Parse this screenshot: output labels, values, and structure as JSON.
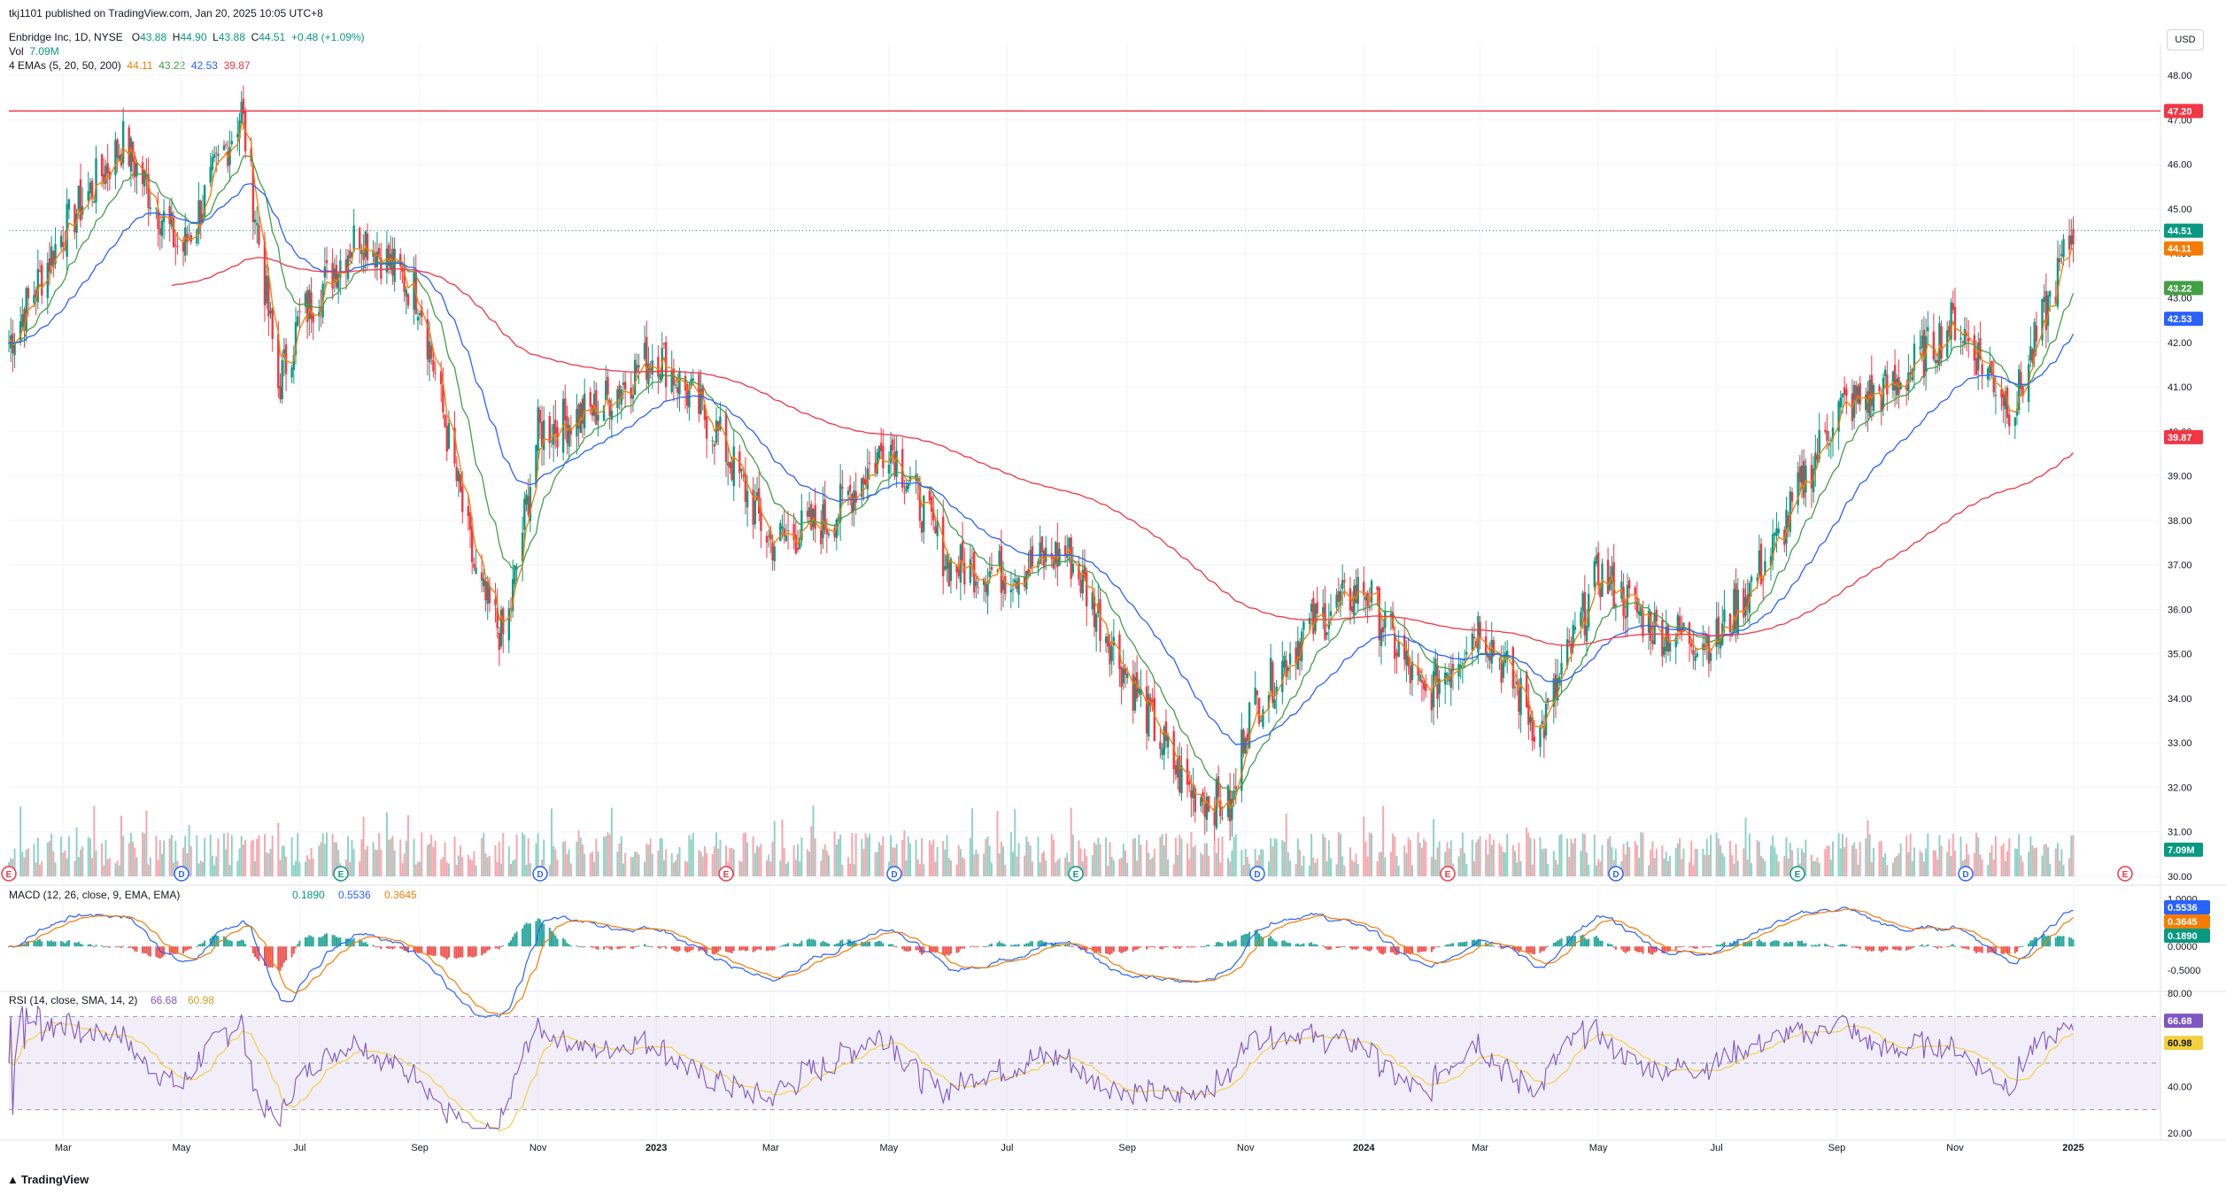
{
  "published": "tkj1101 published on TradingView.com, Jan 20, 2025 10:05 UTC+8",
  "header": {
    "symbol": "Enbridge Inc, 1D, NYSE",
    "open_label": "O",
    "open": "43.88",
    "high_label": "H",
    "high": "44.90",
    "low_label": "L",
    "low": "43.88",
    "close_label": "C",
    "close": "44.51",
    "change": "+0.48 (+1.09%)",
    "vol_label": "Vol",
    "vol": "7.09M",
    "ema_label": "4 EMAs (5, 20, 50, 200)",
    "ema5": "44.11",
    "ema20": "43.22",
    "ema50": "42.53",
    "ema200": "39.87",
    "currency": "USD"
  },
  "colors": {
    "up": "#089981",
    "down": "#f23645",
    "ema5": "#f57c00",
    "ema20": "#43a047",
    "ema50": "#2962ff",
    "ema200": "#f23645",
    "hline": "#f23645",
    "macd": "#2962ff",
    "signal": "#f57c00",
    "rsi": "#7e57c2",
    "rsi_ma": "#f4d03f"
  },
  "chart_data": [
    {
      "type": "candlestick",
      "title": "Enbridge Inc, 1D, NYSE",
      "ylim": [
        30.0,
        48.5
      ],
      "y_ticks": [
        "48.00",
        "47.00",
        "46.00",
        "45.00",
        "44.00",
        "43.00",
        "42.00",
        "41.00",
        "40.00",
        "39.00",
        "38.00",
        "37.00",
        "36.00",
        "35.00",
        "34.00",
        "33.00",
        "32.00",
        "31.00",
        "30.00"
      ],
      "x_labels": [
        "Mar",
        "May",
        "Jul",
        "Sep",
        "Nov",
        "2023",
        "Mar",
        "May",
        "Jul",
        "Sep",
        "Nov",
        "2024",
        "Mar",
        "May",
        "Jul",
        "Sep",
        "Nov",
        "2025"
      ],
      "horizontal_line": 47.2,
      "price_tags": [
        {
          "label": "47.20",
          "value": 47.2,
          "color": "#f23645"
        },
        {
          "label": "44.51",
          "value": 44.51,
          "color": "#089981"
        },
        {
          "label": "44.11",
          "value": 44.11,
          "color": "#f57c00"
        },
        {
          "label": "43.22",
          "value": 43.22,
          "color": "#43a047"
        },
        {
          "label": "42.53",
          "value": 42.53,
          "color": "#2962ff"
        },
        {
          "label": "39.87",
          "value": 39.87,
          "color": "#f23645"
        },
        {
          "label": "7.09M",
          "value": 30.6,
          "color": "#089981"
        }
      ],
      "approx_close_path": [
        {
          "x": "2022-02",
          "y": 42.0
        },
        {
          "x": "2022-03",
          "y": 44.5
        },
        {
          "x": "2022-04",
          "y": 46.5
        },
        {
          "x": "2022-05",
          "y": 44.0
        },
        {
          "x": "2022-06",
          "y": 47.2
        },
        {
          "x": "2022-06-20",
          "y": 41.0
        },
        {
          "x": "2022-07",
          "y": 42.5
        },
        {
          "x": "2022-08",
          "y": 44.5
        },
        {
          "x": "2022-09",
          "y": 43.0
        },
        {
          "x": "2022-10",
          "y": 36.5
        },
        {
          "x": "2022-10-15",
          "y": 35.3
        },
        {
          "x": "2022-11",
          "y": 40.0
        },
        {
          "x": "2022-12",
          "y": 40.5
        },
        {
          "x": "2023-01",
          "y": 41.8
        },
        {
          "x": "2023-02",
          "y": 40.0
        },
        {
          "x": "2023-03",
          "y": 37.5
        },
        {
          "x": "2023-04",
          "y": 38.0
        },
        {
          "x": "2023-05",
          "y": 39.8
        },
        {
          "x": "2023-06",
          "y": 37.0
        },
        {
          "x": "2023-07",
          "y": 36.8
        },
        {
          "x": "2023-08",
          "y": 37.3
        },
        {
          "x": "2023-09",
          "y": 34.5
        },
        {
          "x": "2023-10",
          "y": 32.0
        },
        {
          "x": "2023-10-25",
          "y": 31.5
        },
        {
          "x": "2023-11",
          "y": 33.5
        },
        {
          "x": "2023-12",
          "y": 35.5
        },
        {
          "x": "2024-01",
          "y": 36.5
        },
        {
          "x": "2024-02",
          "y": 34.0
        },
        {
          "x": "2024-03",
          "y": 35.7
        },
        {
          "x": "2024-04",
          "y": 33.2
        },
        {
          "x": "2024-05",
          "y": 36.8
        },
        {
          "x": "2024-06",
          "y": 35.5
        },
        {
          "x": "2024-07",
          "y": 35.3
        },
        {
          "x": "2024-08",
          "y": 37.5
        },
        {
          "x": "2024-09",
          "y": 40.5
        },
        {
          "x": "2024-10",
          "y": 41.0
        },
        {
          "x": "2024-11",
          "y": 42.5
        },
        {
          "x": "2024-12",
          "y": 40.5
        },
        {
          "x": "2025-01",
          "y": 44.51
        }
      ],
      "dividend_markers": [
        "E",
        "D",
        "E",
        "D"
      ]
    },
    {
      "type": "bar",
      "title": "MACD (12, 26, close, 9, EMA, EMA)",
      "series": [
        {
          "name": "MACD",
          "last": "0.5536"
        },
        {
          "name": "Signal",
          "last": "0.3645"
        },
        {
          "name": "Histogram",
          "last": "0.1890"
        }
      ],
      "legend_values": [
        "0.1890",
        "0.5536",
        "0.3645"
      ],
      "y_ticks": [
        "1.0000",
        "0.0000",
        "-0.5000"
      ],
      "tags": [
        "0.5536",
        "0.3645",
        "0.1890"
      ]
    },
    {
      "type": "line",
      "title": "RSI (14, close, SMA, 14, 2)",
      "legend_values": [
        "66.68",
        "60.98"
      ],
      "ylim": [
        20,
        80
      ],
      "y_ticks": [
        "80.00",
        "60.00",
        "40.00",
        "20.00"
      ],
      "bands": [
        70,
        50,
        30
      ],
      "tags": [
        "66.68",
        "60.98"
      ]
    }
  ],
  "footer": {
    "brand": "TradingView"
  }
}
